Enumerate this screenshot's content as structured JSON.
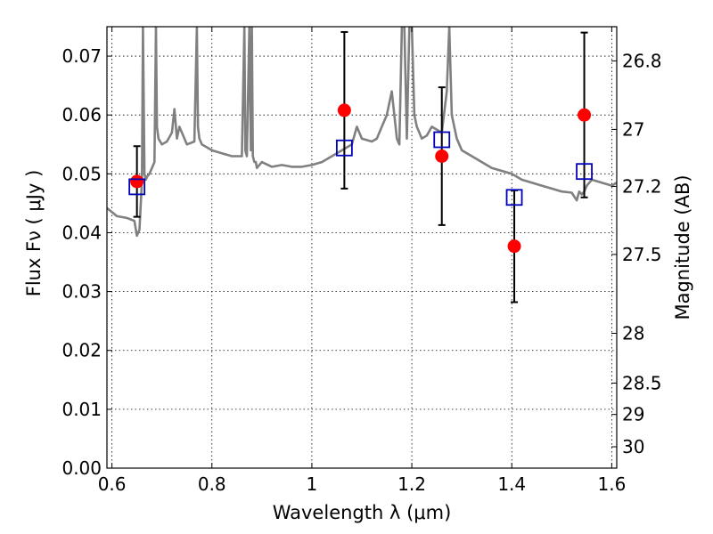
{
  "chart_data": {
    "type": "scatter",
    "title": "",
    "xlabel": "Wavelength  λ (μm)",
    "ylabel": "Flux  Fν  ( μJy )",
    "y2label": "Magnitude (AB)",
    "xlim": [
      0.59,
      1.61
    ],
    "ylim": [
      0.0,
      0.075
    ],
    "grid": true,
    "x_ticks": [
      0.6,
      0.8,
      1.0,
      1.2,
      1.4,
      1.6
    ],
    "x_tick_labels": [
      "0.6",
      "0.8",
      "1",
      "1.2",
      "1.4",
      "1.6"
    ],
    "y_ticks": [
      0.0,
      0.01,
      0.02,
      0.03,
      0.04,
      0.05,
      0.06,
      0.07
    ],
    "y_tick_labels": [
      "0.00",
      "0.01",
      "0.02",
      "0.03",
      "0.04",
      "0.05",
      "0.06",
      "0.07"
    ],
    "y2_ticks": [
      26.8,
      27.0,
      27.2,
      27.5,
      28.0,
      28.5,
      29.0,
      30.0
    ],
    "y2_tick_labels": [
      "26.8",
      "27",
      "27.2",
      "27.5",
      "28",
      "28.5",
      "29",
      "30"
    ],
    "colors": {
      "observed": "#ff0000",
      "model_photometry": "#0000bb",
      "template": "#808080",
      "errorbar": "#000000"
    },
    "series": [
      {
        "kind": "observed",
        "marker": "circle",
        "x": [
          0.65,
          1.065,
          1.26,
          1.405,
          1.545
        ],
        "y": [
          0.0487,
          0.0608,
          0.053,
          0.0377,
          0.06
        ],
        "yerr": [
          0.006,
          0.0133,
          0.0117,
          0.0095,
          0.014
        ]
      },
      {
        "kind": "model_photometry",
        "marker": "square",
        "x": [
          0.65,
          1.065,
          1.26,
          1.405,
          1.545
        ],
        "y": [
          0.0478,
          0.0544,
          0.0558,
          0.046,
          0.0504
        ]
      },
      {
        "kind": "template",
        "marker": "line",
        "x": [
          0.59,
          0.61,
          0.63,
          0.645,
          0.65,
          0.655,
          0.66,
          0.662,
          0.665,
          0.668,
          0.67,
          0.675,
          0.68,
          0.685,
          0.688,
          0.69,
          0.693,
          0.7,
          0.71,
          0.72,
          0.725,
          0.73,
          0.735,
          0.75,
          0.765,
          0.77,
          0.772,
          0.775,
          0.78,
          0.8,
          0.82,
          0.84,
          0.86,
          0.865,
          0.867,
          0.87,
          0.875,
          0.878,
          0.88,
          0.882,
          0.885,
          0.888,
          0.89,
          0.9,
          0.92,
          0.94,
          0.96,
          0.98,
          1.0,
          1.02,
          1.04,
          1.06,
          1.08,
          1.09,
          1.1,
          1.12,
          1.13,
          1.14,
          1.15,
          1.16,
          1.17,
          1.175,
          1.18,
          1.185,
          1.19,
          1.195,
          1.2,
          1.205,
          1.21,
          1.215,
          1.22,
          1.23,
          1.24,
          1.26,
          1.27,
          1.275,
          1.28,
          1.29,
          1.3,
          1.32,
          1.34,
          1.36,
          1.38,
          1.4,
          1.42,
          1.44,
          1.46,
          1.48,
          1.5,
          1.52,
          1.53,
          1.535,
          1.54,
          1.545,
          1.55,
          1.56,
          1.58,
          1.6,
          1.61
        ],
        "y": [
          0.0442,
          0.0428,
          0.0425,
          0.042,
          0.0395,
          0.0405,
          0.049,
          0.075,
          0.05,
          0.049,
          0.0495,
          0.05,
          0.051,
          0.052,
          0.075,
          0.058,
          0.056,
          0.055,
          0.0555,
          0.057,
          0.061,
          0.056,
          0.058,
          0.055,
          0.0555,
          0.075,
          0.058,
          0.056,
          0.055,
          0.054,
          0.0535,
          0.053,
          0.053,
          0.075,
          0.054,
          0.053,
          0.075,
          0.054,
          0.075,
          0.053,
          0.052,
          0.052,
          0.051,
          0.052,
          0.0512,
          0.0515,
          0.0512,
          0.0512,
          0.0515,
          0.052,
          0.053,
          0.054,
          0.055,
          0.058,
          0.056,
          0.0555,
          0.056,
          0.058,
          0.06,
          0.064,
          0.056,
          0.055,
          0.075,
          0.075,
          0.056,
          0.075,
          0.075,
          0.06,
          0.058,
          0.057,
          0.056,
          0.0565,
          0.058,
          0.057,
          0.064,
          0.075,
          0.06,
          0.056,
          0.054,
          0.053,
          0.052,
          0.051,
          0.0505,
          0.05,
          0.049,
          0.0485,
          0.048,
          0.0475,
          0.047,
          0.0468,
          0.0455,
          0.047,
          0.0465,
          0.047,
          0.048,
          0.049,
          0.0485,
          0.048,
          0.0485
        ]
      }
    ]
  }
}
